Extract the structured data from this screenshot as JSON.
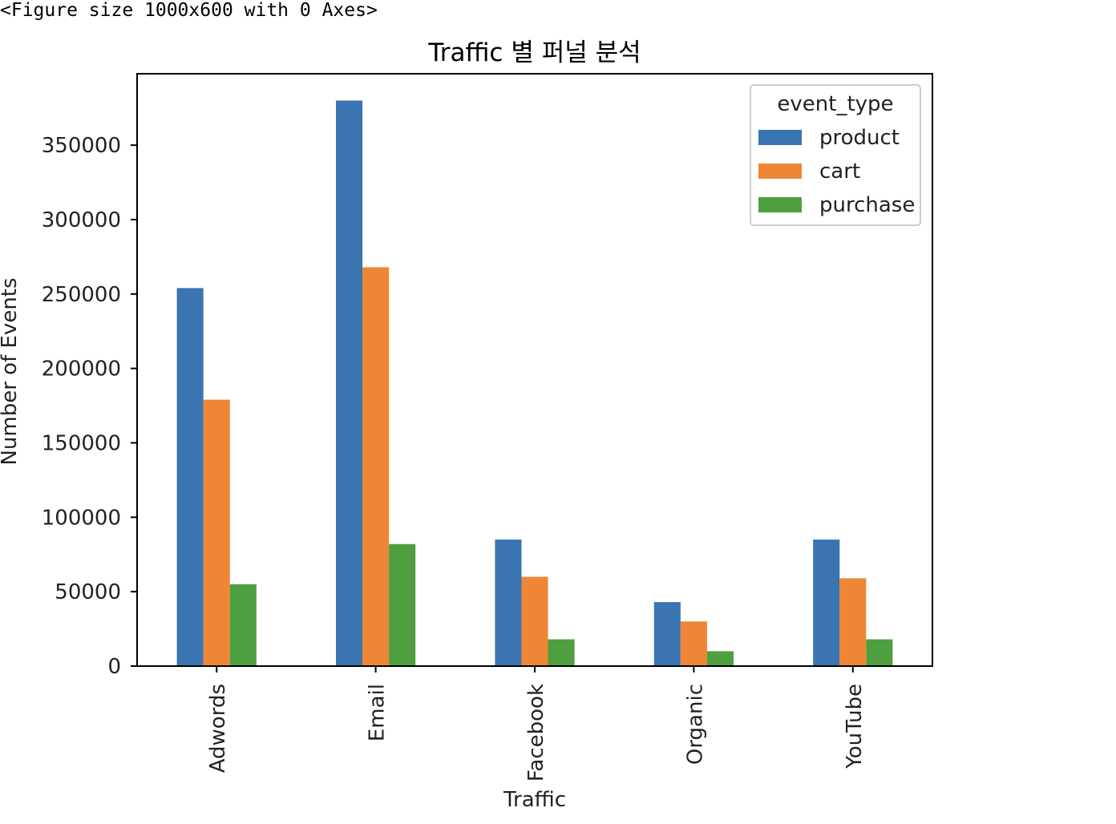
{
  "notebook": {
    "output_text": "<Figure size 1000x600 with 0 Axes>"
  },
  "chart_data": {
    "type": "bar",
    "title": "Traffic 별 퍼널 분석",
    "xlabel": "Traffic",
    "ylabel": "Number of Events",
    "categories": [
      "Adwords",
      "Email",
      "Facebook",
      "Organic",
      "YouTube"
    ],
    "series": [
      {
        "name": "product",
        "color": "#3a74b1",
        "values": [
          254000,
          380000,
          85000,
          43000,
          85000
        ]
      },
      {
        "name": "cart",
        "color": "#ef8636",
        "values": [
          179000,
          268000,
          60000,
          30000,
          59000
        ]
      },
      {
        "name": "purchase",
        "color": "#4f9e3f",
        "values": [
          55000,
          82000,
          18000,
          10000,
          18000
        ]
      }
    ],
    "ylim": [
      0,
      398000
    ],
    "yticks": [
      0,
      50000,
      100000,
      150000,
      200000,
      250000,
      300000,
      350000
    ],
    "legend": {
      "title": "event_type",
      "placement": "top-right"
    },
    "grid": false
  }
}
